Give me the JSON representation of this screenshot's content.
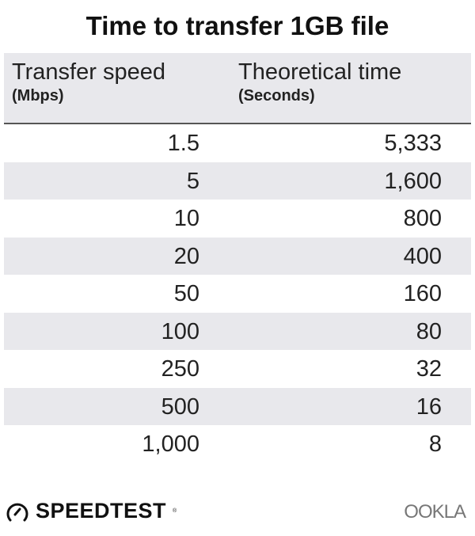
{
  "chart_data": {
    "type": "table",
    "title": "Time to transfer 1GB file",
    "columns": [
      {
        "label": "Transfer speed",
        "unit": "(Mbps)"
      },
      {
        "label": "Theoretical time",
        "unit": "(Seconds)"
      }
    ],
    "rows": [
      [
        "1.5",
        "5,333"
      ],
      [
        "5",
        "1,600"
      ],
      [
        "10",
        "800"
      ],
      [
        "20",
        "400"
      ],
      [
        "50",
        "160"
      ],
      [
        "100",
        "80"
      ],
      [
        "250",
        "32"
      ],
      [
        "500",
        "16"
      ],
      [
        "1,000",
        "8"
      ]
    ],
    "stripe_color": "#e8e8ec"
  },
  "footer": {
    "speedtest_logo": "SPEEDTEST",
    "ookla_logo": "OOKLA"
  }
}
